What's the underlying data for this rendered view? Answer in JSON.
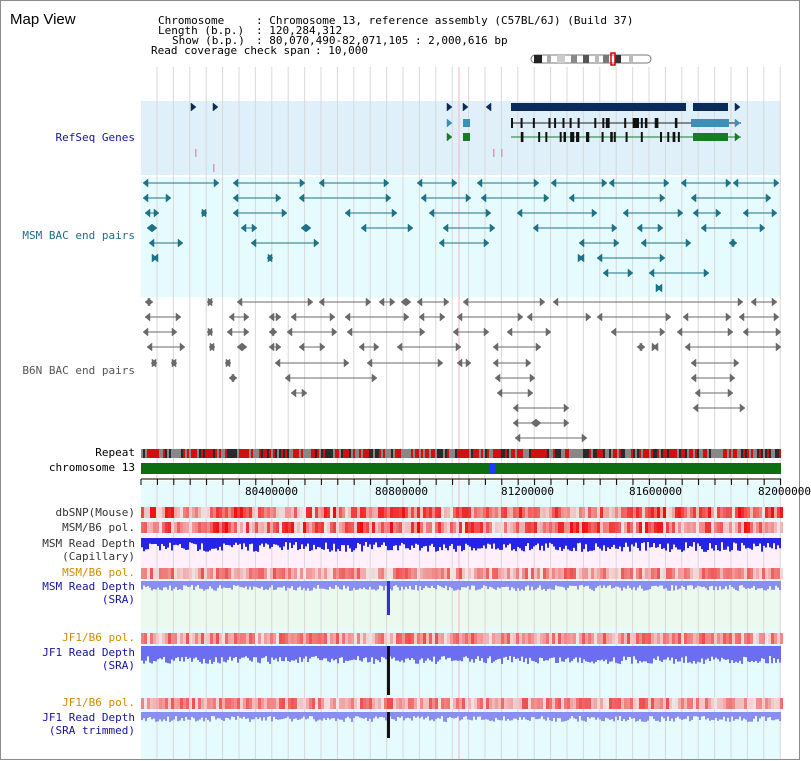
{
  "window": {
    "title": "Map View"
  },
  "info": {
    "rows": [
      {
        "key": "Chromosome",
        "value": ": Chromosome 13, reference assembly (C57BL/6J) (Build 37)"
      },
      {
        "key": "Length (b.p.)",
        "value": ": 120,284,312"
      },
      {
        "key": "Show (b.p.)",
        "value": ": 80,070,490-82,071,105 : 2,000,616 bp"
      },
      {
        "key": "Read coverage check span",
        "value": ": 10,000"
      }
    ]
  },
  "tracks": {
    "refseq": "RefSeq Genes",
    "msm_bac": "MSM BAC end pairs",
    "b6n_bac": "B6N BAC end pairs",
    "repeat": "Repeat",
    "chromosome": "chromosome 13",
    "dbsnp": "dbSNP(Mouse)",
    "msm_pol": "MSM/B6 pol.",
    "msm_depth_cap_1": "MSM Read Depth",
    "msm_depth_cap_2": "(Capillary)",
    "msm_pol_2": "MSM/B6 pol.",
    "msm_depth_sra_1": "MSM Read Depth",
    "msm_depth_sra_2": "(SRA)",
    "jf1_pol": "JF1/B6 pol.",
    "jf1_depth_sra_1": "JF1 Read Depth",
    "jf1_depth_sra_2": "(SRA)",
    "jf1_pol_2": "JF1/B6 pol.",
    "jf1_depth_trim_1": "JF1 Read Depth",
    "jf1_depth_trim_2": "(SRA trimmed)"
  },
  "scale": {
    "ticks": [
      "80400000",
      "80800000",
      "81200000",
      "81600000",
      "82000000"
    ]
  },
  "colors": {
    "refseq_bg": "#dff0fa",
    "msm_bg": "#e6fbfd",
    "gene_navy": "#0a2a5c",
    "gene_teal": "#3b90b7",
    "gene_green": "#1a7a28",
    "msm_feature": "#1f7388",
    "b6n_feature": "#6a6a6a",
    "chromosome_green": "#0c6e10",
    "depth_blue": "#2424e8",
    "depth_light": "#8a8ef0",
    "pol_red": "#e82020",
    "pol_orange": "#d48a00",
    "label_navy": "#1414a0"
  }
}
